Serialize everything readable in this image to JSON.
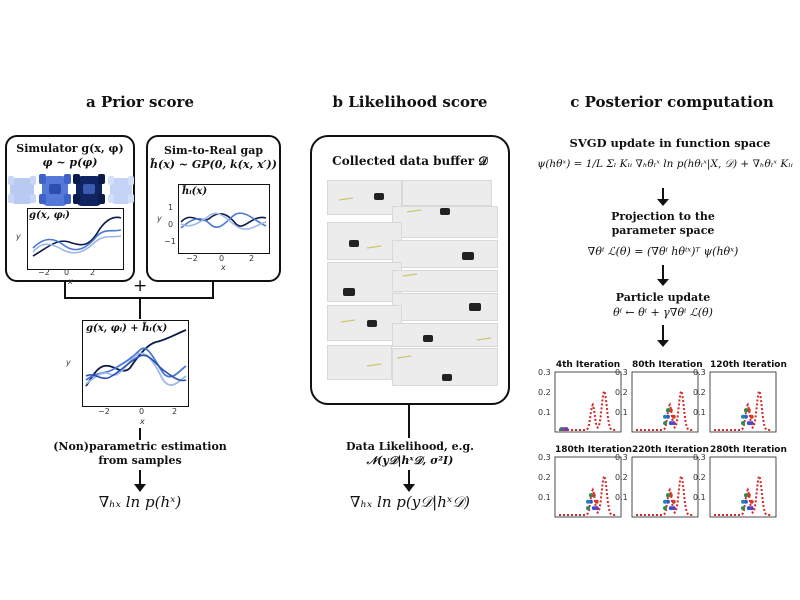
{
  "panels": {
    "a": {
      "title": "a  Prior score",
      "simulator_title": "Simulator g(x, φ)",
      "simulator_sub": "φ ~ p(φ)",
      "sim2real_title": "Sim-to-Real gap",
      "sim2real_sub": "h̃(x) ~ GP(0, k(x, x′))",
      "plot1_legend": "g(x, φᵢ)",
      "plot2_legend": "h̃ᵢ(x)",
      "plot3_legend": "g(x, φᵢ) + h̃ᵢ(x)",
      "plus": "+",
      "estimation_line1": "(Non)parametric estimation",
      "estimation_line2": "from samples",
      "score": "∇ₕₓ ln p(hˣ)",
      "axis_y": "y",
      "axis_x": "x",
      "ticks_x": [
        "−2",
        "0",
        "2"
      ],
      "ticks_y": [
        "1",
        "0",
        "−1"
      ]
    },
    "b": {
      "title": "b  Likelihood score",
      "buffer_title": "Collected data buffer 𝒟",
      "likelihood_line1": "Data Likelihood, e.g.",
      "likelihood_line2": "𝒩(y𝒟|hˣ𝒟, σ²I)",
      "score": "∇ₕₓ ln p(y𝒟|hˣ𝒟)"
    },
    "c": {
      "title": "c  Posterior computation",
      "svgd_title": "SVGD update in function space",
      "svgd_eq": "ψ(hθˣ) = 1/L Σₗ Kₗᵢ ∇ₕθₗˣ ln p(hθₗˣ|X, 𝒟) + ∇ₕθₗˣ Kₗᵢ",
      "proj_line1": "Projection to the",
      "proj_line2": "parameter space",
      "proj_eq": "∇θⁱ ℒ(θ) = (∇θⁱ hθⁱˣ)ᵀ ψ(hθˣ)",
      "particle_title": "Particle update",
      "particle_eq": "θⁱ ← θⁱ + γ∇θⁱ ℒ(θ)",
      "iterations": [
        "4th Iteration",
        "80th Iteration",
        "120th Iteration",
        "180th Iteration",
        "220th Iteration",
        "280th Iteration"
      ],
      "yticks": [
        "0.3",
        "0.2",
        "0.1"
      ]
    }
  },
  "colors": {
    "ink": "#111111",
    "light_blue": "#9fb8e8",
    "mid_blue": "#4a78d6",
    "dark_navy": "#0a1a4a",
    "density_red": "#d42a2a"
  }
}
